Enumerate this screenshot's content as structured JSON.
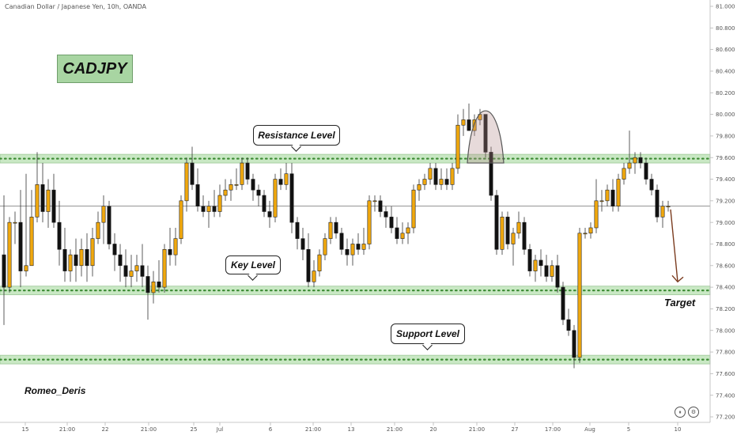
{
  "header": {
    "title": "Canadian Dollar / Japanese Yen, 10h, OANDA"
  },
  "symbol_badge": "CADJPY",
  "author": "Romeo_Deris",
  "annotations": {
    "resistance": "Resistance Level",
    "key": "Key Level",
    "support": "Support Level",
    "target": "Target"
  },
  "colors": {
    "up_candle": "#f0a80e",
    "down_candle": "#111111",
    "zone_fill": "#c9e8c4",
    "zone_dots": "#3b8a32",
    "arrow": "#7a3b1e"
  },
  "chart_data": {
    "type": "candlestick",
    "price_axis": {
      "range": [
        77.2,
        81.0
      ],
      "ticks": [
        "81.000",
        "80.800",
        "80.600",
        "80.400",
        "80.200",
        "80.000",
        "79.800",
        "79.600",
        "79.400",
        "79.200",
        "79.000",
        "78.800",
        "78.600",
        "78.400",
        "78.200",
        "78.000",
        "77.800",
        "77.600",
        "77.400",
        "77.200"
      ]
    },
    "time_axis": {
      "ticks": [
        "15",
        "21:00",
        "22",
        "21:00",
        "25",
        "Jul",
        "6",
        "21:00",
        "13",
        "21:00",
        "20",
        "21:00",
        "27",
        "17:00",
        "Aug",
        "5",
        "10"
      ]
    },
    "current_price": 79.15,
    "zones": [
      {
        "name": "resistance",
        "low": 79.55,
        "high": 79.63
      },
      {
        "name": "key",
        "low": 78.33,
        "high": 78.41
      },
      {
        "name": "support",
        "low": 77.69,
        "high": 77.77
      }
    ],
    "target_price": 78.38,
    "candles": [
      {
        "o": 78.7,
        "h": 79.25,
        "l": 78.05,
        "c": 78.4
      },
      {
        "o": 78.4,
        "h": 79.05,
        "l": 78.35,
        "c": 79.0
      },
      {
        "o": 79.0,
        "h": 79.1,
        "l": 78.8,
        "c": 79.0
      },
      {
        "o": 79.0,
        "h": 79.3,
        "l": 78.4,
        "c": 78.55
      },
      {
        "o": 78.55,
        "h": 79.45,
        "l": 78.5,
        "c": 78.6
      },
      {
        "o": 78.6,
        "h": 79.3,
        "l": 78.6,
        "c": 79.05
      },
      {
        "o": 79.05,
        "h": 79.65,
        "l": 79.0,
        "c": 79.35
      },
      {
        "o": 79.35,
        "h": 79.55,
        "l": 79.0,
        "c": 79.1
      },
      {
        "o": 79.1,
        "h": 79.4,
        "l": 78.95,
        "c": 79.3
      },
      {
        "o": 79.3,
        "h": 79.45,
        "l": 78.95,
        "c": 79.0
      },
      {
        "o": 79.0,
        "h": 79.2,
        "l": 78.6,
        "c": 78.75
      },
      {
        "o": 78.75,
        "h": 78.95,
        "l": 78.45,
        "c": 78.55
      },
      {
        "o": 78.55,
        "h": 78.75,
        "l": 78.45,
        "c": 78.7
      },
      {
        "o": 78.7,
        "h": 78.85,
        "l": 78.45,
        "c": 78.6
      },
      {
        "o": 78.6,
        "h": 78.85,
        "l": 78.5,
        "c": 78.75
      },
      {
        "o": 78.75,
        "h": 78.9,
        "l": 78.45,
        "c": 78.6
      },
      {
        "o": 78.6,
        "h": 78.95,
        "l": 78.5,
        "c": 78.85
      },
      {
        "o": 78.85,
        "h": 79.1,
        "l": 78.8,
        "c": 79.0
      },
      {
        "o": 79.0,
        "h": 79.25,
        "l": 78.8,
        "c": 79.15
      },
      {
        "o": 79.15,
        "h": 79.2,
        "l": 78.75,
        "c": 78.8
      },
      {
        "o": 78.8,
        "h": 78.9,
        "l": 78.55,
        "c": 78.7
      },
      {
        "o": 78.7,
        "h": 78.8,
        "l": 78.45,
        "c": 78.6
      },
      {
        "o": 78.6,
        "h": 78.75,
        "l": 78.4,
        "c": 78.5
      },
      {
        "o": 78.5,
        "h": 78.7,
        "l": 78.4,
        "c": 78.55
      },
      {
        "o": 78.55,
        "h": 78.7,
        "l": 78.45,
        "c": 78.6
      },
      {
        "o": 78.6,
        "h": 78.8,
        "l": 78.4,
        "c": 78.5
      },
      {
        "o": 78.5,
        "h": 78.6,
        "l": 78.1,
        "c": 78.35
      },
      {
        "o": 78.35,
        "h": 78.55,
        "l": 78.25,
        "c": 78.45
      },
      {
        "o": 78.45,
        "h": 78.65,
        "l": 78.35,
        "c": 78.4
      },
      {
        "o": 78.4,
        "h": 78.8,
        "l": 78.35,
        "c": 78.75
      },
      {
        "o": 78.75,
        "h": 78.95,
        "l": 78.6,
        "c": 78.7
      },
      {
        "o": 78.7,
        "h": 78.95,
        "l": 78.6,
        "c": 78.85
      },
      {
        "o": 78.85,
        "h": 79.25,
        "l": 78.8,
        "c": 79.2
      },
      {
        "o": 79.2,
        "h": 79.6,
        "l": 79.1,
        "c": 79.55
      },
      {
        "o": 79.55,
        "h": 79.7,
        "l": 79.3,
        "c": 79.35
      },
      {
        "o": 79.35,
        "h": 79.5,
        "l": 79.1,
        "c": 79.15
      },
      {
        "o": 79.15,
        "h": 79.25,
        "l": 79.05,
        "c": 79.1
      },
      {
        "o": 79.1,
        "h": 79.2,
        "l": 78.95,
        "c": 79.15
      },
      {
        "o": 79.15,
        "h": 79.3,
        "l": 79.05,
        "c": 79.1
      },
      {
        "o": 79.1,
        "h": 79.35,
        "l": 79.05,
        "c": 79.25
      },
      {
        "o": 79.25,
        "h": 79.4,
        "l": 79.2,
        "c": 79.3
      },
      {
        "o": 79.3,
        "h": 79.4,
        "l": 79.2,
        "c": 79.35
      },
      {
        "o": 79.35,
        "h": 79.5,
        "l": 79.3,
        "c": 79.35
      },
      {
        "o": 79.35,
        "h": 79.6,
        "l": 79.3,
        "c": 79.55
      },
      {
        "o": 79.55,
        "h": 79.6,
        "l": 79.35,
        "c": 79.4
      },
      {
        "o": 79.4,
        "h": 79.45,
        "l": 79.2,
        "c": 79.3
      },
      {
        "o": 79.3,
        "h": 79.35,
        "l": 79.15,
        "c": 79.25
      },
      {
        "o": 79.25,
        "h": 79.3,
        "l": 79.05,
        "c": 79.1
      },
      {
        "o": 79.1,
        "h": 79.2,
        "l": 78.95,
        "c": 79.05
      },
      {
        "o": 79.05,
        "h": 79.45,
        "l": 79.0,
        "c": 79.4
      },
      {
        "o": 79.4,
        "h": 79.5,
        "l": 79.3,
        "c": 79.35
      },
      {
        "o": 79.35,
        "h": 79.55,
        "l": 79.3,
        "c": 79.45
      },
      {
        "o": 79.45,
        "h": 79.55,
        "l": 78.9,
        "c": 79.0
      },
      {
        "o": 79.0,
        "h": 79.05,
        "l": 78.75,
        "c": 78.85
      },
      {
        "o": 78.85,
        "h": 78.95,
        "l": 78.65,
        "c": 78.75
      },
      {
        "o": 78.75,
        "h": 78.9,
        "l": 78.4,
        "c": 78.45
      },
      {
        "o": 78.45,
        "h": 78.65,
        "l": 78.4,
        "c": 78.55
      },
      {
        "o": 78.55,
        "h": 78.75,
        "l": 78.5,
        "c": 78.7
      },
      {
        "o": 78.7,
        "h": 78.9,
        "l": 78.65,
        "c": 78.85
      },
      {
        "o": 78.85,
        "h": 79.05,
        "l": 78.8,
        "c": 79.0
      },
      {
        "o": 79.0,
        "h": 79.05,
        "l": 78.85,
        "c": 78.9
      },
      {
        "o": 78.9,
        "h": 78.95,
        "l": 78.7,
        "c": 78.75
      },
      {
        "o": 78.75,
        "h": 78.85,
        "l": 78.6,
        "c": 78.7
      },
      {
        "o": 78.7,
        "h": 78.85,
        "l": 78.6,
        "c": 78.8
      },
      {
        "o": 78.8,
        "h": 78.9,
        "l": 78.7,
        "c": 78.75
      },
      {
        "o": 78.75,
        "h": 78.95,
        "l": 78.7,
        "c": 78.8
      },
      {
        "o": 78.8,
        "h": 79.25,
        "l": 78.75,
        "c": 79.2
      },
      {
        "o": 79.2,
        "h": 79.25,
        "l": 79.1,
        "c": 79.2
      },
      {
        "o": 79.2,
        "h": 79.25,
        "l": 79.05,
        "c": 79.1
      },
      {
        "o": 79.1,
        "h": 79.15,
        "l": 78.95,
        "c": 79.05
      },
      {
        "o": 79.05,
        "h": 79.15,
        "l": 78.9,
        "c": 78.95
      },
      {
        "o": 78.95,
        "h": 79.05,
        "l": 78.8,
        "c": 78.85
      },
      {
        "o": 78.85,
        "h": 79.0,
        "l": 78.8,
        "c": 78.9
      },
      {
        "o": 78.9,
        "h": 79.0,
        "l": 78.8,
        "c": 78.95
      },
      {
        "o": 78.95,
        "h": 79.35,
        "l": 78.9,
        "c": 79.3
      },
      {
        "o": 79.3,
        "h": 79.4,
        "l": 79.2,
        "c": 79.35
      },
      {
        "o": 79.35,
        "h": 79.45,
        "l": 79.3,
        "c": 79.4
      },
      {
        "o": 79.4,
        "h": 79.55,
        "l": 79.35,
        "c": 79.5
      },
      {
        "o": 79.5,
        "h": 79.55,
        "l": 79.3,
        "c": 79.35
      },
      {
        "o": 79.35,
        "h": 79.5,
        "l": 79.3,
        "c": 79.4
      },
      {
        "o": 79.4,
        "h": 79.5,
        "l": 79.3,
        "c": 79.35
      },
      {
        "o": 79.35,
        "h": 79.55,
        "l": 79.3,
        "c": 79.5
      },
      {
        "o": 79.5,
        "h": 80.0,
        "l": 79.45,
        "c": 79.9
      },
      {
        "o": 79.9,
        "h": 80.05,
        "l": 79.8,
        "c": 79.95
      },
      {
        "o": 79.95,
        "h": 80.1,
        "l": 79.85,
        "c": 79.85
      },
      {
        "o": 79.85,
        "h": 80.0,
        "l": 79.8,
        "c": 79.95
      },
      {
        "o": 79.95,
        "h": 80.05,
        "l": 79.9,
        "c": 80.0
      },
      {
        "o": 80.0,
        "h": 80.0,
        "l": 79.6,
        "c": 79.65
      },
      {
        "o": 79.65,
        "h": 79.7,
        "l": 79.2,
        "c": 79.25
      },
      {
        "o": 79.25,
        "h": 79.3,
        "l": 78.7,
        "c": 78.75
      },
      {
        "o": 78.75,
        "h": 79.1,
        "l": 78.7,
        "c": 79.05
      },
      {
        "o": 79.05,
        "h": 79.1,
        "l": 78.75,
        "c": 78.8
      },
      {
        "o": 78.8,
        "h": 78.95,
        "l": 78.6,
        "c": 78.9
      },
      {
        "o": 78.9,
        "h": 79.1,
        "l": 78.85,
        "c": 79.0
      },
      {
        "o": 79.0,
        "h": 79.05,
        "l": 78.7,
        "c": 78.75
      },
      {
        "o": 78.75,
        "h": 78.8,
        "l": 78.5,
        "c": 78.55
      },
      {
        "o": 78.55,
        "h": 78.7,
        "l": 78.45,
        "c": 78.65
      },
      {
        "o": 78.65,
        "h": 78.75,
        "l": 78.5,
        "c": 78.6
      },
      {
        "o": 78.6,
        "h": 78.7,
        "l": 78.45,
        "c": 78.5
      },
      {
        "o": 78.5,
        "h": 78.65,
        "l": 78.45,
        "c": 78.6
      },
      {
        "o": 78.6,
        "h": 78.7,
        "l": 78.35,
        "c": 78.4
      },
      {
        "o": 78.4,
        "h": 78.45,
        "l": 78.05,
        "c": 78.1
      },
      {
        "o": 78.1,
        "h": 78.2,
        "l": 77.95,
        "c": 78.0
      },
      {
        "o": 78.0,
        "h": 78.05,
        "l": 77.65,
        "c": 77.75
      },
      {
        "o": 77.75,
        "h": 78.95,
        "l": 77.7,
        "c": 78.9
      },
      {
        "o": 78.9,
        "h": 78.95,
        "l": 78.85,
        "c": 78.9
      },
      {
        "o": 78.9,
        "h": 79.0,
        "l": 78.85,
        "c": 78.95
      },
      {
        "o": 78.95,
        "h": 79.4,
        "l": 78.9,
        "c": 79.2
      },
      {
        "o": 79.2,
        "h": 79.3,
        "l": 79.1,
        "c": 79.2
      },
      {
        "o": 79.2,
        "h": 79.35,
        "l": 79.15,
        "c": 79.3
      },
      {
        "o": 79.3,
        "h": 79.4,
        "l": 79.1,
        "c": 79.15
      },
      {
        "o": 79.15,
        "h": 79.45,
        "l": 79.1,
        "c": 79.4
      },
      {
        "o": 79.4,
        "h": 79.55,
        "l": 79.35,
        "c": 79.5
      },
      {
        "o": 79.5,
        "h": 79.85,
        "l": 79.45,
        "c": 79.55
      },
      {
        "o": 79.55,
        "h": 79.65,
        "l": 79.45,
        "c": 79.6
      },
      {
        "o": 79.6,
        "h": 79.65,
        "l": 79.5,
        "c": 79.55
      },
      {
        "o": 79.55,
        "h": 79.6,
        "l": 79.35,
        "c": 79.4
      },
      {
        "o": 79.4,
        "h": 79.45,
        "l": 79.25,
        "c": 79.3
      },
      {
        "o": 79.3,
        "h": 79.35,
        "l": 79.0,
        "c": 79.05
      },
      {
        "o": 79.05,
        "h": 79.2,
        "l": 78.95,
        "c": 79.15
      },
      {
        "o": 79.15,
        "h": 79.2,
        "l": 79.1,
        "c": 79.15
      }
    ]
  }
}
